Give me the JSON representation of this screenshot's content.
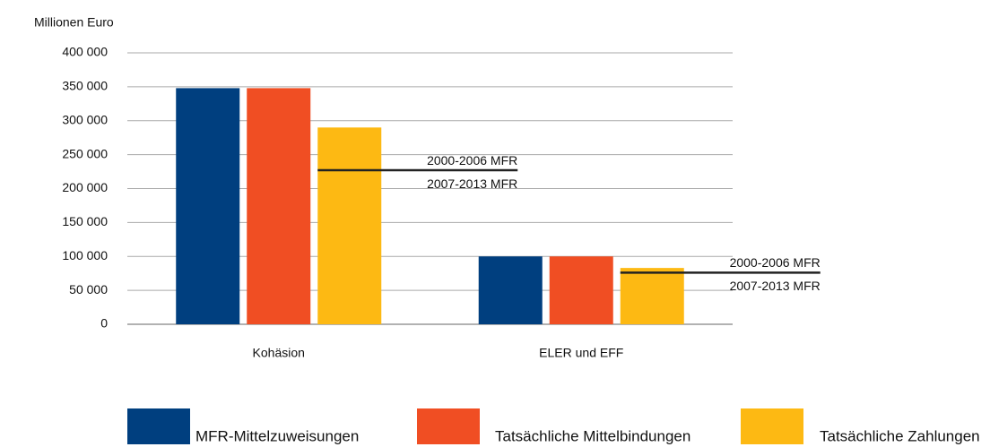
{
  "chart_data": {
    "type": "bar",
    "y_axis_label": "Millionen Euro",
    "categories": [
      "Kohäsion",
      "ELER und EFF"
    ],
    "series": [
      {
        "name": "MFR-Mittelzuweisungen",
        "color": "#003f7f",
        "values": [
          348000,
          100000
        ]
      },
      {
        "name": "Tatsächliche Mittelbindungen",
        "color": "#f04e23",
        "values": [
          348000,
          100000
        ]
      },
      {
        "name": "Tatsächliche Zahlungen",
        "color": "#fdb913",
        "values": [
          290000,
          83000
        ]
      }
    ],
    "annotations": [
      {
        "value": 227000,
        "labels": [
          "2000-2006 MFR",
          "2007-2013 MFR"
        ]
      },
      {
        "value": 76000,
        "labels": [
          "2000-2006 MFR",
          "2007-2013 MFR"
        ]
      }
    ],
    "ylim": [
      0,
      400000
    ],
    "yticks": [
      0,
      {
        "value": 50000,
        "label": "50 000"
      },
      {
        "value": 100000,
        "label": "100 000"
      },
      {
        "value": 150000,
        "label": "150 000"
      },
      {
        "value": 200000,
        "label": "200 000"
      },
      {
        "value": 250000,
        "label": "250 000"
      },
      {
        "value": 300000,
        "label": "300 000"
      },
      {
        "value": 350000,
        "label": "350 000"
      },
      {
        "value": 400000,
        "label": "400 000"
      }
    ],
    "grid": true,
    "legend": "bottom"
  }
}
